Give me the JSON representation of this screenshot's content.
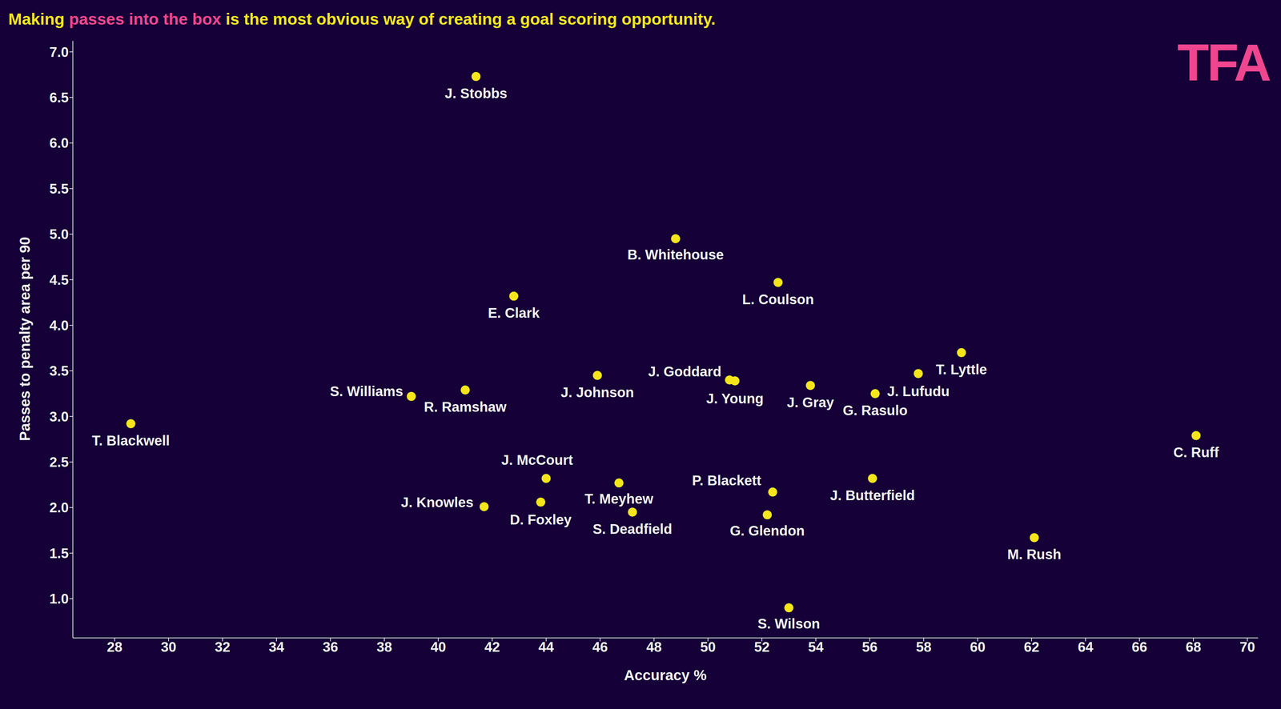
{
  "chart_data": {
    "type": "scatter",
    "title": "Making passes into the box is the most obvious way of creating a goal scoring opportunity.",
    "title_highlight": "passes into the box",
    "annotations": [
      "TFA"
    ],
    "x_label": "Accuracy %",
    "y_label": "Passes to penalty area per 90",
    "labels": [
      "J. Stobbs",
      "B. Whitehouse",
      "L. Coulson",
      "E. Clark",
      "T. Lyttle",
      "J. Johnson",
      "J. Goddard",
      "J. Young",
      "J. Gray",
      "J. Lufudu",
      "G. Rasulo",
      "S. Williams",
      "R. Ramshaw",
      "T. Blackwell",
      "C. Ruff",
      "J. McCourt",
      "T. Meyhew",
      "J. Butterfield",
      "P. Blackett",
      "J. Knowles",
      "D. Foxley",
      "S. Deadfield",
      "G. Glendon",
      "M. Rush",
      "S. Wilson"
    ],
    "x": [
      41.4,
      48.8,
      52.6,
      42.8,
      59.4,
      45.9,
      50.8,
      51.0,
      53.8,
      57.8,
      56.2,
      39.0,
      41.0,
      28.6,
      68.1,
      44.0,
      46.7,
      56.1,
      52.4,
      41.7,
      43.8,
      47.2,
      52.2,
      62.1,
      53.0
    ],
    "values": [
      6.73,
      4.95,
      4.47,
      4.32,
      3.7,
      3.45,
      3.4,
      3.39,
      3.34,
      3.47,
      3.25,
      3.22,
      3.29,
      2.92,
      2.79,
      2.32,
      2.27,
      2.32,
      2.17,
      2.01,
      2.06,
      1.95,
      1.92,
      1.67,
      0.9
    ],
    "color": "#f5e61c",
    "xlim": [
      26.45,
      70.4
    ],
    "ylim": [
      0.57,
      7.12
    ],
    "xticks": [
      28,
      30,
      32,
      34,
      36,
      38,
      40,
      42,
      44,
      46,
      48,
      50,
      52,
      54,
      56,
      58,
      60,
      62,
      64,
      66,
      68,
      70
    ],
    "yticks": [
      {
        "value": 1,
        "label": "1.0"
      },
      1.5,
      {
        "value": 2,
        "label": "2.0"
      },
      2.5,
      {
        "value": 3,
        "label": "3.0"
      },
      3.5,
      {
        "value": 4,
        "label": "4.0"
      },
      4.5,
      {
        "value": 5,
        "label": "5.0"
      },
      5.5,
      {
        "value": 6,
        "label": "6.0"
      },
      6.5,
      {
        "value": 7,
        "label": "7.0"
      }
    ],
    "grid": false
  }
}
